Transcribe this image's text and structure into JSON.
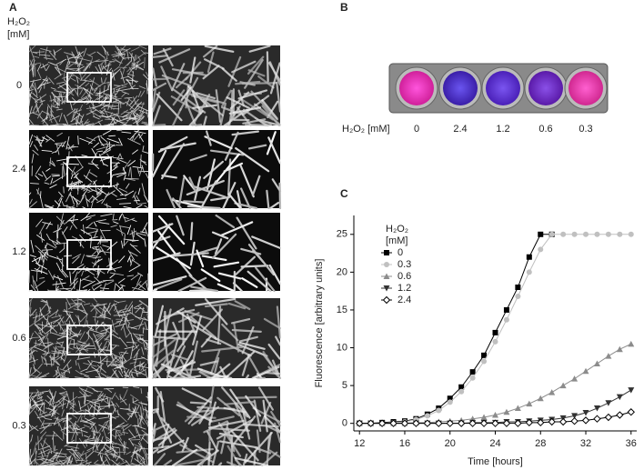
{
  "panels": {
    "a": {
      "label": "A",
      "title": "H₂O₂",
      "unit": "[mM]",
      "rows": [
        "0",
        "2.4",
        "1.2",
        "0.6",
        "0.3"
      ]
    },
    "b": {
      "label": "B",
      "title": "H₂O₂ [mM]",
      "wells": [
        "0",
        "2.4",
        "1.2",
        "0.6",
        "0.3"
      ]
    },
    "c": {
      "label": "C"
    }
  },
  "chart_data": {
    "type": "line",
    "x_label": "Time [hours]",
    "y_label": "Fluorescence [arbitrary units]",
    "legend_title": "H₂O₂",
    "legend_unit": "[mM]",
    "x": [
      12,
      13,
      14,
      15,
      16,
      17,
      18,
      19,
      20,
      21,
      22,
      23,
      24,
      25,
      26,
      27,
      28,
      29,
      30,
      31,
      32,
      33,
      34,
      35,
      36
    ],
    "xlim": [
      11.5,
      36.5
    ],
    "xticks": [
      12,
      16,
      20,
      24,
      28,
      32,
      36
    ],
    "ylim": [
      -1,
      27.5
    ],
    "yticks": [
      0,
      5,
      10,
      15,
      20,
      25
    ],
    "series": [
      {
        "name": "0",
        "color": "#000000",
        "marker": "square",
        "values": [
          0,
          0,
          0.1,
          0.2,
          0.3,
          0.6,
          1.2,
          2,
          3.3,
          4.8,
          6.8,
          9,
          12,
          15,
          18,
          22,
          25,
          25,
          null,
          null,
          null,
          null,
          null,
          null,
          null
        ]
      },
      {
        "name": "0.3",
        "color": "#c0c0c0",
        "marker": "circle",
        "values": [
          0,
          0,
          0,
          0.1,
          0.2,
          0.5,
          1,
          1.7,
          2.8,
          4.2,
          6,
          8.2,
          10.8,
          13.7,
          16.8,
          20,
          23,
          25,
          25,
          25,
          25,
          25,
          25,
          25,
          25
        ]
      },
      {
        "name": "0.6",
        "color": "#8c8c8c",
        "marker": "triangle",
        "values": [
          0,
          0,
          0,
          0,
          0,
          0.1,
          0.1,
          0.2,
          0.3,
          0.4,
          0.6,
          0.8,
          1.1,
          1.5,
          2,
          2.6,
          3.3,
          4.1,
          5,
          5.9,
          6.9,
          7.9,
          8.9,
          9.8,
          10.5
        ]
      },
      {
        "name": "1.2",
        "color": "#333333",
        "marker": "triangle-down",
        "values": [
          0,
          0,
          0,
          0,
          0,
          0,
          0,
          0,
          0,
          0,
          0.1,
          0.1,
          0.1,
          0.2,
          0.2,
          0.3,
          0.4,
          0.5,
          0.7,
          1,
          1.4,
          2,
          2.7,
          3.5,
          4.4
        ]
      },
      {
        "name": "2.4",
        "color": "#000000",
        "marker": "diamond-open",
        "values": [
          0,
          0,
          0,
          0,
          0,
          0,
          0,
          0,
          0,
          0,
          0,
          0,
          0,
          0,
          0,
          0.1,
          0.1,
          0.2,
          0.2,
          0.3,
          0.4,
          0.6,
          0.8,
          1.1,
          1.5
        ]
      }
    ]
  }
}
